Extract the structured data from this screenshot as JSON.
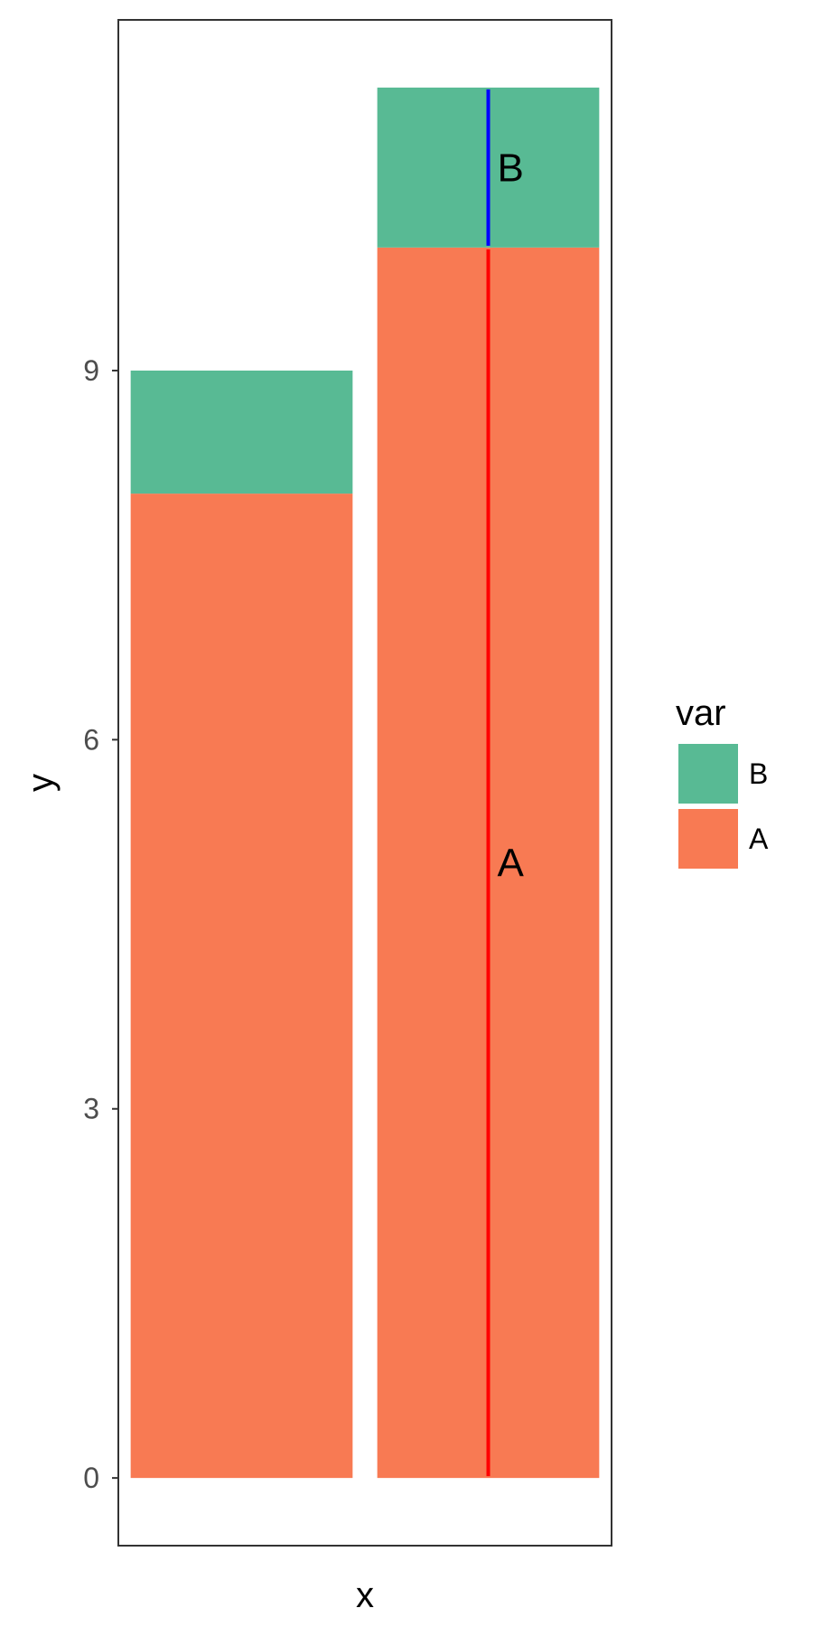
{
  "chart_data": {
    "type": "bar",
    "stacked": true,
    "categories": [
      "",
      ""
    ],
    "series": [
      {
        "name": "A",
        "values": [
          8,
          10
        ],
        "color": "#F87A53"
      },
      {
        "name": "B",
        "values": [
          1,
          1.3
        ],
        "color": "#58BA94"
      }
    ],
    "title": "",
    "xlabel": "x",
    "ylabel": "y",
    "ylim": [
      -0.55,
      11.85
    ],
    "yticks": [
      0,
      3,
      6,
      9
    ],
    "ytick_labels": [
      "0",
      "3",
      "6",
      "9"
    ],
    "grid": false,
    "legend": {
      "title": "var",
      "position": "right",
      "entries": [
        {
          "label": "B",
          "color": "#58BA94"
        },
        {
          "label": "A",
          "color": "#F87A53"
        }
      ]
    },
    "annotations": [
      {
        "category_index": 1,
        "label": "A",
        "y_start": 0,
        "y_end": 10,
        "y_label": 5,
        "line_color": "#FF0000"
      },
      {
        "category_index": 1,
        "label": "B",
        "y_start": 10,
        "y_end": 11.3,
        "y_label": 10.65,
        "line_color": "#0000FF"
      }
    ]
  }
}
